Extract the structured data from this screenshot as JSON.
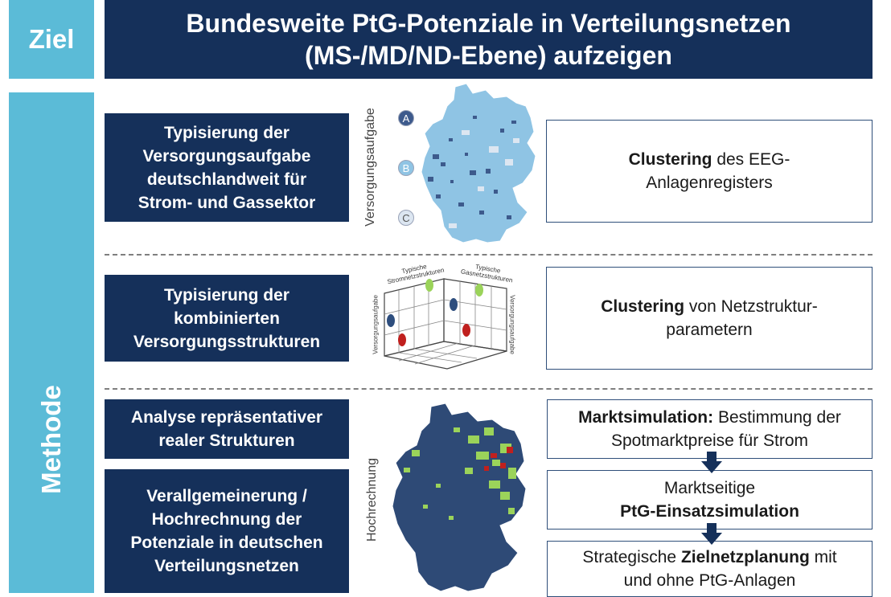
{
  "ziel_label": "Ziel",
  "title": {
    "line1": "Bundesweite PtG-Potenziale in Verteilungsnetzen",
    "line2": "(MS-/MD/ND-Ebene) aufzeigen"
  },
  "methode_label": "Methode",
  "left_boxes": [
    {
      "lines": [
        "Typisierung der",
        "Versorgungsaufgabe",
        "deutschlandweit für",
        "Strom- und Gassektor"
      ]
    },
    {
      "lines": [
        "Typisierung der",
        "kombinierten",
        "Versorgungsstrukturen"
      ]
    },
    {
      "lines": [
        "Analyse repräsentativer",
        "realer Strukturen"
      ]
    },
    {
      "lines": [
        "Verallgemeinerung /",
        "Hochrechnung der",
        "Potenziale in deutschen",
        "Verteilungsnetzen"
      ]
    }
  ],
  "right_boxes": [
    {
      "line1_bold": "Clustering",
      "line1_rest": " des EEG-",
      "line2": "Anlagenregisters"
    },
    {
      "line1_bold": "Clustering",
      "line1_rest": " von Netzstruktur-",
      "line2": "parametern"
    },
    {
      "line1_bold": "Marktsimulation:",
      "line1_rest": " Bestimmung der",
      "line2": "Spotmarktpreise für Strom"
    },
    {
      "line1": "Marktseitige",
      "line2_bold": "PtG-Einsatzsimulation"
    },
    {
      "line1_pre": "Strategische ",
      "line1_bold": "Zielnetzplanung",
      "line1_rest": " mit",
      "line2": "und ohne PtG-Anlagen"
    }
  ],
  "map1": {
    "axis_label": "Versorgungsaufgabe",
    "markers": [
      "A",
      "B",
      "C"
    ],
    "colors": {
      "dark": "#3d5a8c",
      "mid": "#8fc4e4",
      "light": "#dce6f1"
    }
  },
  "cube": {
    "top_left_label": "Typische Stromnetzstrukturen",
    "top_right_label": "Typische Gasnetzstrukturen",
    "left_label": "Versorgungsaufgabe",
    "right_label": "Versorgungsaufgabe",
    "dot_colors": {
      "green": "#9bd35a",
      "blue": "#2e4e7e",
      "red": "#c0201e"
    }
  },
  "map2": {
    "axis_label": "Hochrechnung",
    "colors": {
      "base": "#2e4a76",
      "green": "#9bd35a",
      "red": "#c0201e"
    }
  },
  "colors": {
    "navy": "#15305a",
    "light_blue": "#5bbbd7",
    "box_border": "#2f4f7a"
  }
}
